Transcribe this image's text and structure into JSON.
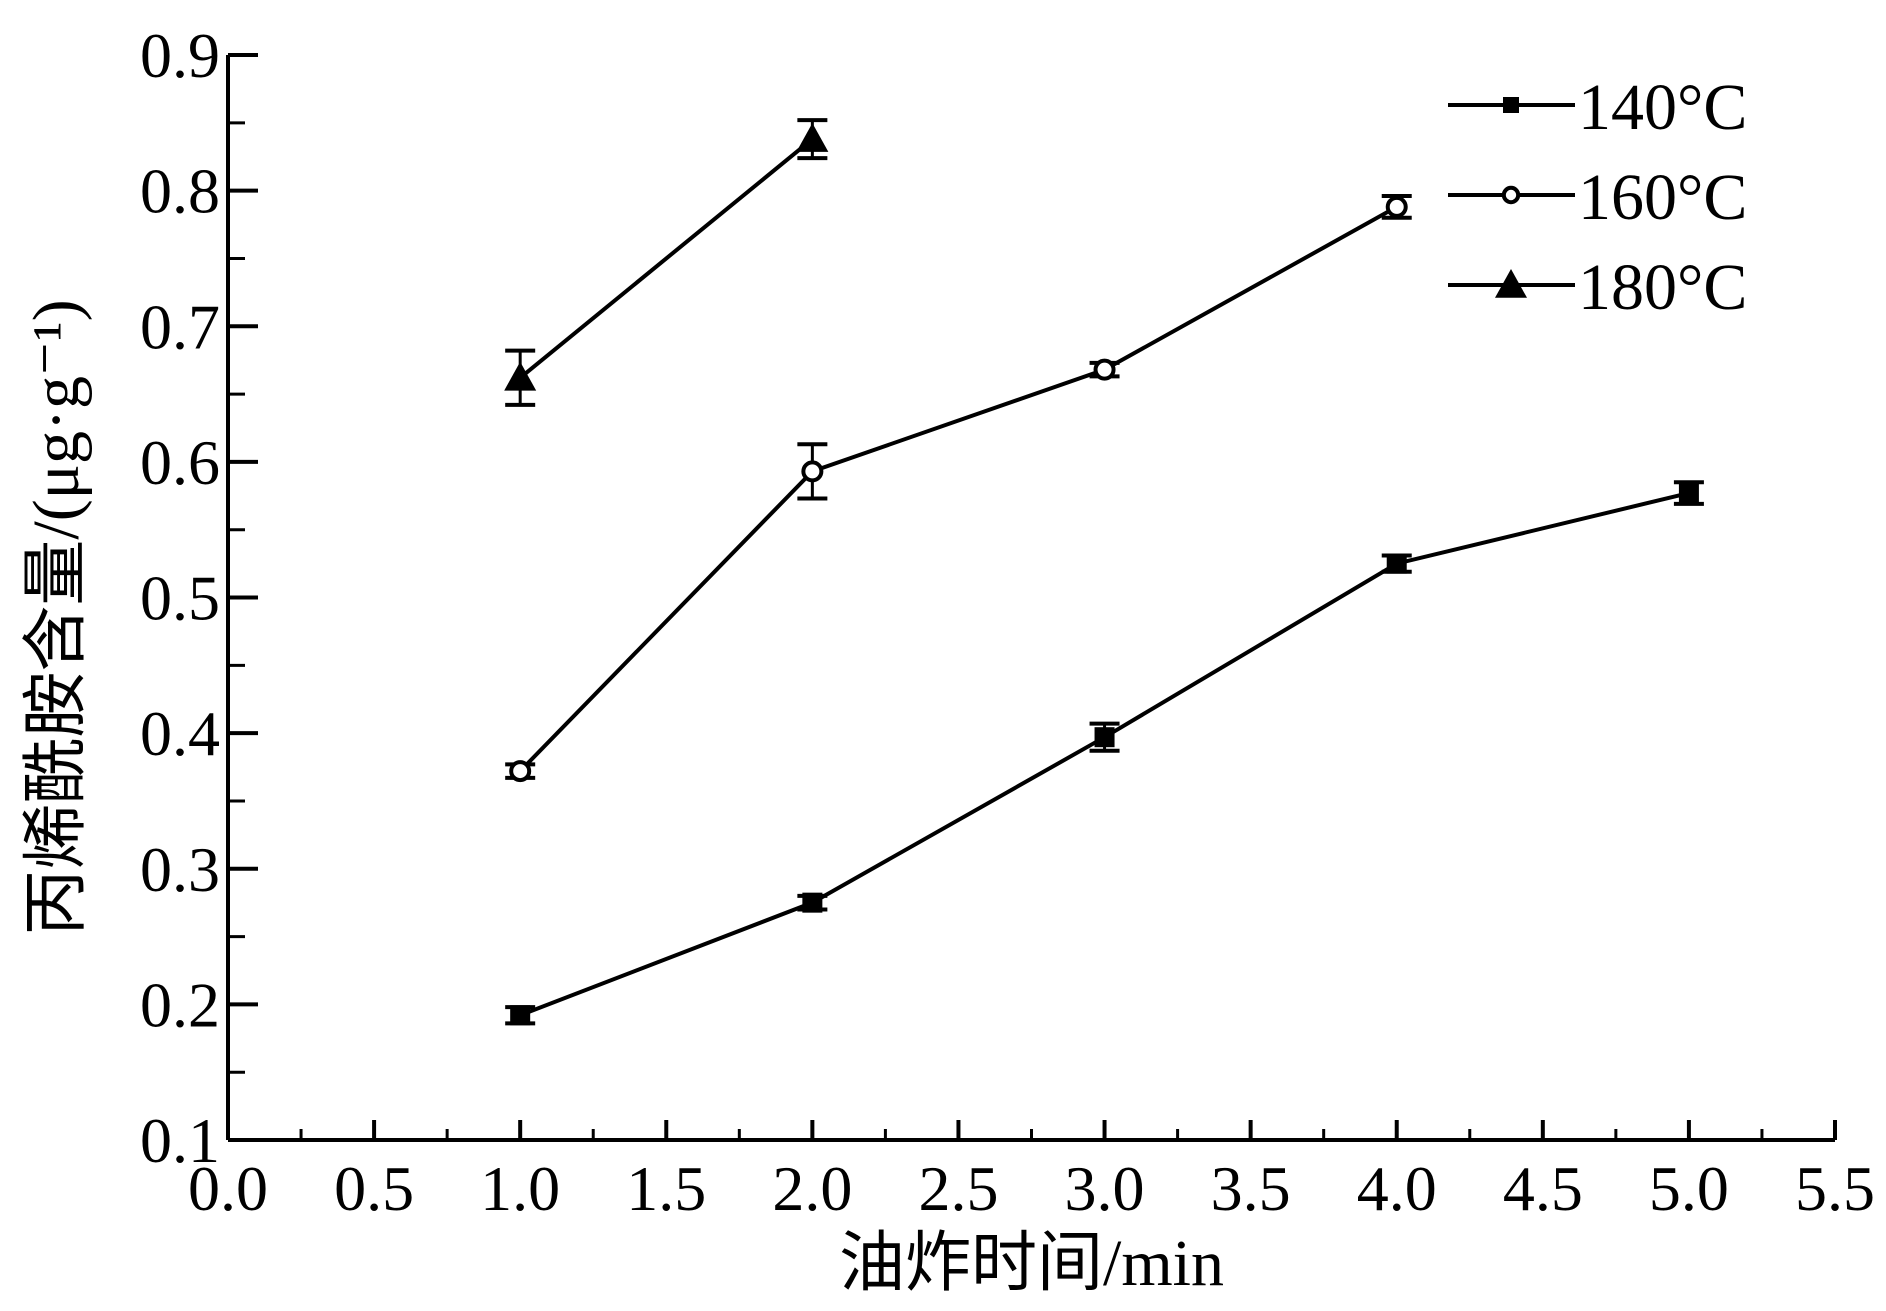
{
  "chart_data": {
    "type": "line",
    "title": "",
    "xlabel": "油炸时间/min",
    "ylabel": "丙烯酰胺含量/(μg·g⁻¹)",
    "xlim": [
      0.0,
      5.5
    ],
    "ylim": [
      0.1,
      0.9
    ],
    "x_ticks": [
      "0.0",
      "0.5",
      "1.0",
      "1.5",
      "2.0",
      "2.5",
      "3.0",
      "3.5",
      "4.0",
      "4.5",
      "5.0",
      "5.5"
    ],
    "y_ticks": [
      "0.1",
      "0.2",
      "0.3",
      "0.4",
      "0.5",
      "0.6",
      "0.7",
      "0.8",
      "0.9"
    ],
    "grid": false,
    "legend_position": "top-right",
    "series": [
      {
        "name": "140°C",
        "marker": "filled-square",
        "x": [
          1,
          2,
          3,
          4,
          5
        ],
        "y": [
          0.192,
          0.275,
          0.397,
          0.525,
          0.577
        ],
        "err": [
          0.006,
          0.005,
          0.01,
          0.006,
          0.008
        ]
      },
      {
        "name": "160°C",
        "marker": "open-circle",
        "x": [
          1,
          2,
          3,
          4
        ],
        "y": [
          0.372,
          0.593,
          0.668,
          0.788
        ],
        "err": [
          0.005,
          0.02,
          0.005,
          0.008
        ]
      },
      {
        "name": "180°C",
        "marker": "filled-triangle",
        "x": [
          1,
          2
        ],
        "y": [
          0.662,
          0.838
        ],
        "err": [
          0.02,
          0.014
        ]
      }
    ]
  },
  "colors": {
    "line": "#000000",
    "background": "#ffffff"
  }
}
